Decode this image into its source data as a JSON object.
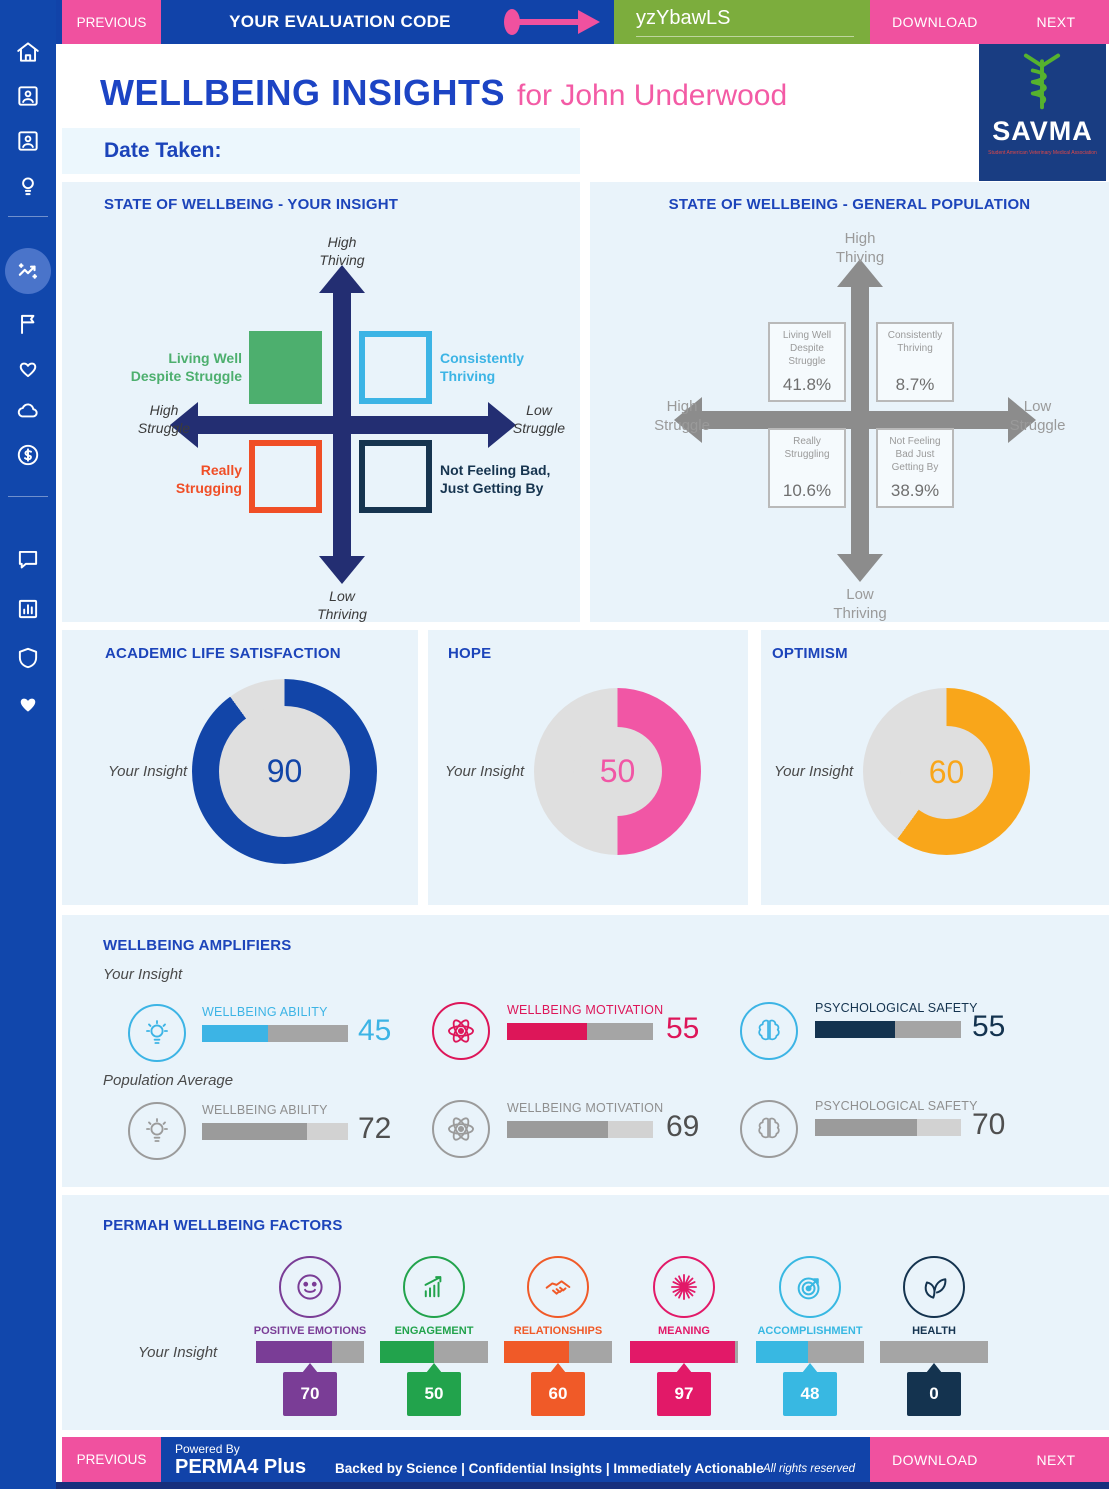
{
  "topbar": {
    "previous": "PREVIOUS",
    "eval_label": "YOUR EVALUATION CODE",
    "code": "yzYbawLS",
    "download": "DOWNLOAD",
    "next": "NEXT"
  },
  "logo": {
    "title": "SAVMA",
    "tagline": "Student American Veterinary Medical Association"
  },
  "header": {
    "title": "WELLBEING INSIGHTS",
    "for_text": "for John Underwood",
    "date_label": "Date Taken:"
  },
  "sidebar": {
    "icons": [
      "home-icon",
      "profile-card-icon",
      "profile-card-2-icon",
      "lightbulb-icon",
      "insights-trend-icon",
      "flag-icon",
      "heart-icon",
      "cloud-icon",
      "dollar-icon",
      "chat-icon",
      "report-icon",
      "shield-icon",
      "heart-filled-icon"
    ],
    "active": "insights-trend-icon"
  },
  "quadrant_insight": {
    "title": "STATE OF WELLBEING - YOUR INSIGHT",
    "axis": {
      "top": [
        "High",
        "Thiving"
      ],
      "bottom": [
        "Low",
        "Thriving"
      ],
      "left": [
        "High",
        "Struggle"
      ],
      "right": [
        "Low",
        "Struggle"
      ]
    },
    "quadrants": [
      {
        "line1": "Living Well",
        "line2": "Despite Struggle",
        "color": "#4daf6e"
      },
      {
        "line1": "Consistently",
        "line2": "Thriving",
        "color": "#3cb4e5"
      },
      {
        "line1": "Really",
        "line2": "Strugging",
        "color": "#f04e26"
      },
      {
        "line1": "Not Feeling Bad,",
        "line2": "Just Getting By",
        "color": "#16344f"
      }
    ]
  },
  "quadrant_population": {
    "title": "STATE OF WELLBEING - GENERAL POPULATION",
    "axis": {
      "top": [
        "High",
        "Thiving"
      ],
      "bottom": [
        "Low",
        "Thriving"
      ],
      "left": [
        "High",
        "Struggle"
      ],
      "right": [
        "Low",
        "Struggle"
      ]
    },
    "boxes": [
      {
        "label": "Living Well Despite Struggle",
        "value": "41.8%"
      },
      {
        "label": "Consistently Thriving",
        "value": "8.7%"
      },
      {
        "label": "Really Struggling",
        "value": "10.6%"
      },
      {
        "label": "Not Feeling Bad Just Getting By",
        "value": "38.9%"
      }
    ]
  },
  "donuts": [
    {
      "title": "ACADEMIC LIFE SATISFACTION",
      "label": "Your Insight",
      "value": 90,
      "color": "#1245a8",
      "track": "#dfdfdf"
    },
    {
      "title": "HOPE",
      "label": "Your Insight",
      "value": 50,
      "color": "#f156a5",
      "track": "#dfdfdf"
    },
    {
      "title": "OPTIMISM",
      "label": "Your Insight",
      "value": 60,
      "color": "#f9a61a",
      "track": "#dfdfdf"
    }
  ],
  "amplifiers": {
    "title": "WELLBEING AMPLIFIERS",
    "rows": [
      {
        "label": "Your Insight",
        "track": "#a5a5a5",
        "items": [
          {
            "name": "WELLBEING ABILITY",
            "value": 45,
            "color": "#3cb4e5",
            "label_color": "#3cb4e5",
            "value_color": "#3cb4e5",
            "icon": "lightbulb-icon"
          },
          {
            "name": "WELLBEING MOTIVATION",
            "value": 55,
            "color": "#dd1659",
            "label_color": "#dd1659",
            "value_color": "#dd1659",
            "icon": "atom-icon"
          },
          {
            "name": "PSYCHOLOGICAL SAFETY",
            "value": 55,
            "color": "#14334f",
            "label_color": "#14334f",
            "value_color": "#14334f",
            "icon": "brain-icon",
            "icon_color": "#3cb4e5"
          }
        ]
      },
      {
        "label": "Population Average",
        "track": "#d2d2d2",
        "items": [
          {
            "name": "WELLBEING ABILITY",
            "value": 72,
            "color": "#9b9b9b",
            "label_color": "#8f8f8f",
            "value_color": "#4f4f4f",
            "icon": "lightbulb-icon"
          },
          {
            "name": "WELLBEING MOTIVATION",
            "value": 69,
            "color": "#9b9b9b",
            "label_color": "#8f8f8f",
            "value_color": "#4f4f4f",
            "icon": "atom-icon"
          },
          {
            "name": "PSYCHOLOGICAL SAFETY",
            "value": 70,
            "color": "#9b9b9b",
            "label_color": "#8f8f8f",
            "value_color": "#4f4f4f",
            "icon": "brain-icon"
          }
        ]
      }
    ]
  },
  "permah": {
    "title": "PERMAH WELLBEING FACTORS",
    "row_label": "Your Insight",
    "track": "#a5a5a5",
    "factors": [
      {
        "name": "POSITIVE EMOTIONS",
        "value": 70,
        "color": "#7a3d96",
        "icon": "smiley-icon"
      },
      {
        "name": "ENGAGEMENT",
        "value": 50,
        "color": "#22a34c",
        "icon": "growth-chart-icon"
      },
      {
        "name": "RELATIONSHIPS",
        "value": 60,
        "color": "#f05a28",
        "icon": "handshake-icon"
      },
      {
        "name": "MEANING",
        "value": 97,
        "color": "#e21968",
        "icon": "starburst-icon"
      },
      {
        "name": "ACCOMPLISHMENT",
        "value": 48,
        "color": "#38b8e2",
        "icon": "target-icon"
      },
      {
        "name": "HEALTH",
        "value": 0,
        "color": "#14334f",
        "icon": "leaves-icon"
      }
    ]
  },
  "footer": {
    "previous": "PREVIOUS",
    "powered_by": "Powered By",
    "brand": "PERMA4 Plus",
    "tagline": "Backed by Science | Confidential Insights | Immediately Actionable",
    "rights": "All rights reserved",
    "download": "DOWNLOAD",
    "next": "NEXT"
  },
  "colors": {
    "primary_blue": "#1143a9",
    "pink": "#f0519f",
    "green_box": "#7cad3d",
    "heading_blue": "#1c44ba",
    "title_pink": "#f35ba5",
    "panel_bg": "#e9f3fa",
    "navy_cross": "#232e72",
    "gray_cross": "#8c8c8c",
    "footer_strip": "#172f7d"
  }
}
